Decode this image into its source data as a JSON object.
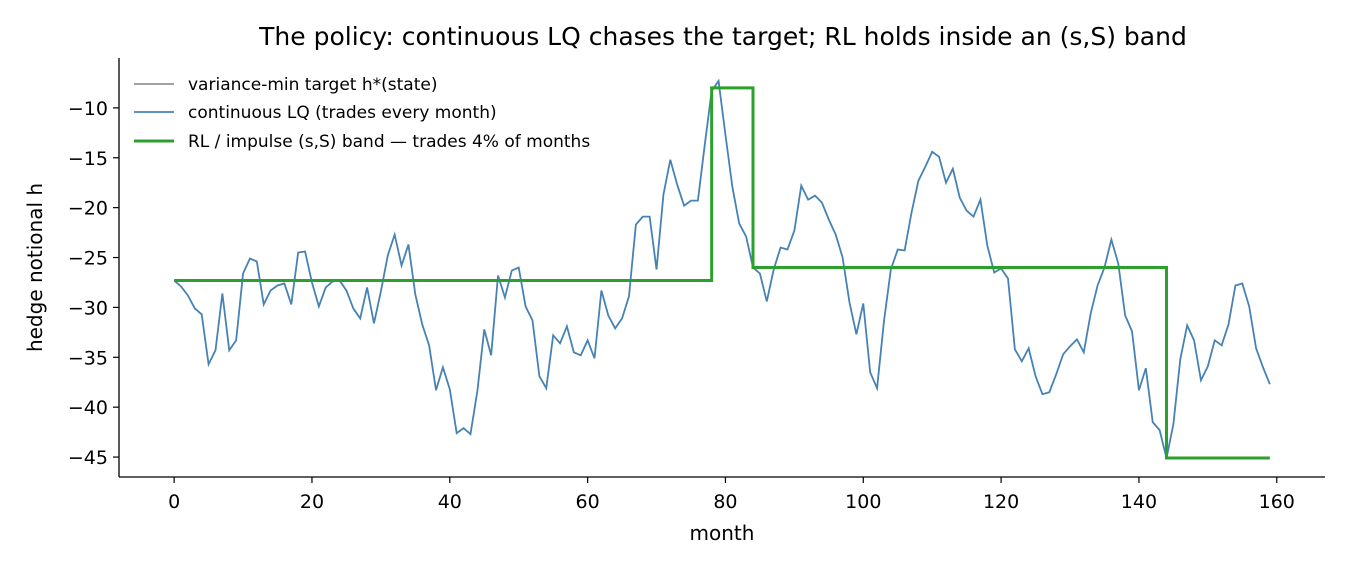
{
  "chart_data": {
    "type": "line",
    "title": "The policy: continuous LQ chases the target; RL holds inside an (s,S) band",
    "xlabel": "month",
    "ylabel": "hedge notional h",
    "xlim": [
      -8,
      167
    ],
    "ylim": [
      -47,
      -5
    ],
    "xticks": [
      0,
      20,
      40,
      60,
      80,
      100,
      120,
      140,
      160
    ],
    "yticks": [
      -45,
      -40,
      -35,
      -30,
      -25,
      -20,
      -15,
      -10
    ],
    "grid": false,
    "legend_position": "top-left",
    "series": [
      {
        "name": "variance-min target h*(state)",
        "color": "#808080",
        "x": [],
        "y": []
      },
      {
        "name": "continuous LQ (trades every month)",
        "color": "#4682b4",
        "x": [
          0,
          1,
          2,
          3,
          4,
          5,
          6,
          7,
          8,
          9,
          10,
          11,
          12,
          13,
          14,
          15,
          16,
          17,
          18,
          19,
          20,
          21,
          22,
          23,
          24,
          25,
          26,
          27,
          28,
          29,
          30,
          31,
          32,
          33,
          34,
          35,
          36,
          37,
          38,
          39,
          40,
          41,
          42,
          43,
          44,
          45,
          46,
          47,
          48,
          49,
          50,
          51,
          52,
          53,
          54,
          55,
          56,
          57,
          58,
          59,
          60,
          61,
          62,
          63,
          64,
          65,
          66,
          67,
          68,
          69,
          70,
          71,
          72,
          73,
          74,
          75,
          76,
          77,
          78,
          79,
          80,
          81,
          82,
          83,
          84,
          85,
          86,
          87,
          88,
          89,
          90,
          91,
          92,
          93,
          94,
          95,
          96,
          97,
          98,
          99,
          100,
          101,
          102,
          103,
          104,
          105,
          106,
          107,
          108,
          109,
          110,
          111,
          112,
          113,
          114,
          115,
          116,
          117,
          118,
          119,
          120,
          121,
          122,
          123,
          124,
          125,
          126,
          127,
          128,
          129,
          130,
          131,
          132,
          133,
          134,
          135,
          136,
          137,
          138,
          139,
          140,
          141,
          142,
          143,
          144,
          145,
          146,
          147,
          148,
          149,
          150,
          151,
          152,
          153,
          154,
          155,
          156,
          157,
          158,
          159
        ],
        "y": [
          -27.3,
          -27.9,
          -28.8,
          -30.1,
          -30.7,
          -35.7,
          -34.3,
          -28.6,
          -34.3,
          -33.3,
          -26.6,
          -25.1,
          -25.4,
          -29.7,
          -28.3,
          -27.8,
          -27.6,
          -29.7,
          -24.5,
          -24.4,
          -27.5,
          -29.9,
          -28.0,
          -27.4,
          -27.3,
          -28.3,
          -30.1,
          -31.1,
          -28.0,
          -31.6,
          -28.4,
          -24.8,
          -22.7,
          -25.8,
          -23.7,
          -28.7,
          -31.7,
          -33.8,
          -38.3,
          -36.0,
          -38.2,
          -42.6,
          -42.1,
          -42.7,
          -38.4,
          -32.2,
          -34.8,
          -26.8,
          -29.0,
          -26.3,
          -26.0,
          -29.9,
          -31.3,
          -36.9,
          -38.1,
          -32.8,
          -33.6,
          -31.9,
          -34.5,
          -34.8,
          -33.3,
          -35.1,
          -28.3,
          -30.8,
          -32.1,
          -31.1,
          -28.9,
          -21.7,
          -20.9,
          -20.9,
          -26.2,
          -18.7,
          -15.2,
          -17.7,
          -19.8,
          -19.3,
          -19.3,
          -13.7,
          -8.3,
          -7.3,
          -12.7,
          -17.9,
          -21.6,
          -22.9,
          -26.0,
          -26.6,
          -29.4,
          -26.2,
          -24.0,
          -24.2,
          -22.3,
          -17.8,
          -19.2,
          -18.8,
          -19.5,
          -21.2,
          -22.7,
          -25.0,
          -29.5,
          -32.7,
          -29.6,
          -36.5,
          -38.1,
          -31.4,
          -26.2,
          -24.2,
          -24.3,
          -20.5,
          -17.3,
          -15.9,
          -14.4,
          -14.9,
          -17.5,
          -16.1,
          -19.0,
          -20.3,
          -20.9,
          -19.2,
          -23.8,
          -26.5,
          -26.1,
          -27.1,
          -34.2,
          -35.4,
          -34.1,
          -36.9,
          -38.7,
          -38.5,
          -36.7,
          -34.7,
          -33.9,
          -33.2,
          -34.5,
          -30.6,
          -27.8,
          -26.0,
          -23.2,
          -25.6,
          -30.8,
          -32.4,
          -38.3,
          -36.1,
          -41.5,
          -42.3,
          -45.1,
          -41.7,
          -35.2,
          -31.8,
          -33.3,
          -37.3,
          -35.9,
          -33.3,
          -33.8,
          -31.7,
          -27.8,
          -27.6,
          -29.9,
          -34.1,
          -36.0,
          -37.7
        ]
      },
      {
        "name": "RL / impulse (s,S) band — trades 4% of months",
        "color": "#2ca02c",
        "x": [
          0,
          78,
          78,
          84,
          84,
          144,
          144,
          159
        ],
        "y": [
          -27.3,
          -27.3,
          -8.0,
          -8.0,
          -26.0,
          -26.0,
          -45.1,
          -45.1
        ]
      }
    ]
  }
}
